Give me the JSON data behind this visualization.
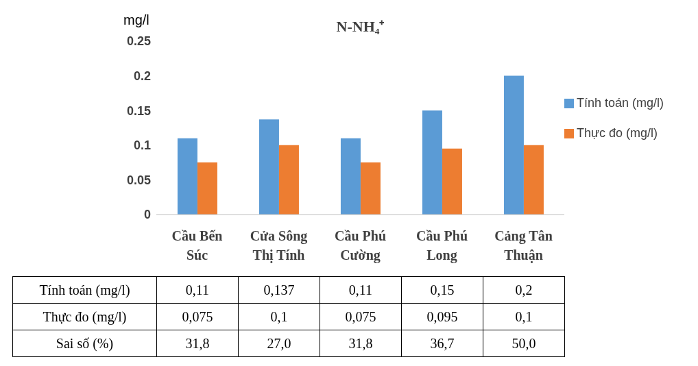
{
  "chart_data": {
    "type": "bar",
    "title": "N-NH₄⁺",
    "ylabel": "mg/l",
    "categories": [
      "Cầu Bến Súc",
      "Cửa Sông Thị Tính",
      "Cầu Phú Cường",
      "Cầu Phú Long",
      "Cảng Tân Thuận"
    ],
    "series": [
      {
        "name": "Tính toán (mg/l)",
        "color": "#5b9bd5",
        "values": [
          0.11,
          0.137,
          0.11,
          0.15,
          0.2
        ],
        "value_labels": [
          "0,11",
          "0,137",
          "0,11",
          "0,15",
          "0,2"
        ]
      },
      {
        "name": "Thực đo (mg/l)",
        "color": "#ed7d31",
        "values": [
          0.075,
          0.1,
          0.075,
          0.095,
          0.1
        ],
        "value_labels": [
          "0,075",
          "0,1",
          "0,075",
          "0,095",
          "0,1"
        ]
      }
    ],
    "ylim": [
      0,
      0.25
    ],
    "yticks": [
      0,
      0.05,
      0.1,
      0.15,
      0.2,
      0.25
    ],
    "grid": false,
    "legend": "right",
    "annotations": [
      "Sai số (%)",
      "31,8",
      "27,0",
      "31,8",
      "36,7",
      "50,0"
    ]
  }
}
